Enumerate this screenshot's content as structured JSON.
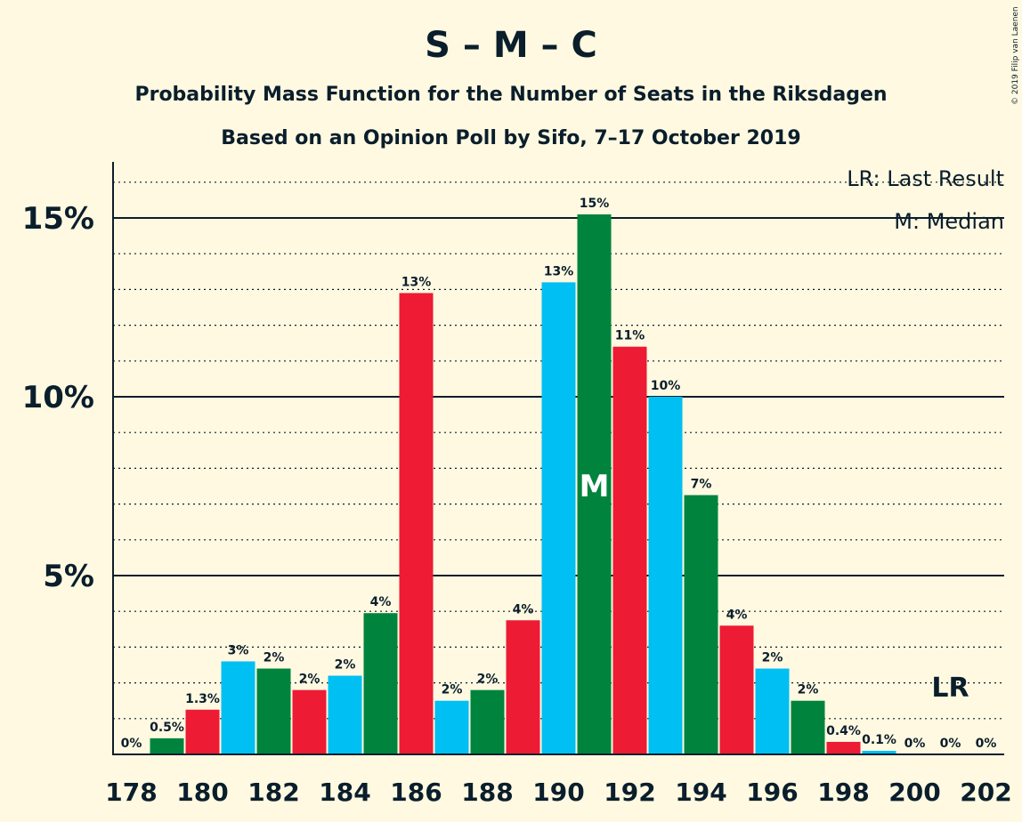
{
  "title": "S – M – C",
  "subtitle1": "Probability Mass Function for the Number of Seats in the Riksdagen",
  "subtitle2": "Based on an Opinion Poll by Sifo, 7–17 October 2019",
  "copyright": "© 2019 Filip van Laenen",
  "legend": {
    "last_result": "LR: Last Result",
    "median": "M: Median"
  },
  "markers": {
    "median_label": "M",
    "median_seat": 191,
    "last_result_label": "LR",
    "last_result_seat": 201
  },
  "colors": {
    "background": "#FFF9E1",
    "blue": "#00BFF3",
    "green": "#00843D",
    "red": "#ED1B34",
    "text": "#0A1E2C"
  },
  "chart_data": {
    "type": "bar",
    "ylim": [
      0,
      16.5
    ],
    "y_major_ticks": [
      5,
      10,
      15
    ],
    "y_tick_labels": [
      "5%",
      "10%",
      "15%"
    ],
    "x_tick_labels": [
      "178",
      "180",
      "182",
      "184",
      "186",
      "188",
      "190",
      "192",
      "194",
      "196",
      "198",
      "200",
      "202"
    ],
    "grid": "dotted lines every 1%, solid lines at 5%, 10%, 15%",
    "categories": [
      178,
      179,
      180,
      181,
      182,
      183,
      184,
      185,
      186,
      187,
      188,
      189,
      190,
      191,
      192,
      193,
      194,
      195,
      196,
      197,
      198,
      199,
      200,
      201,
      202
    ],
    "values": [
      0,
      0.45,
      1.25,
      2.6,
      2.4,
      1.8,
      2.2,
      3.95,
      12.9,
      1.5,
      1.8,
      3.75,
      13.2,
      15.1,
      11.4,
      10.0,
      7.25,
      3.6,
      2.4,
      1.5,
      0.35,
      0.1,
      0,
      0,
      0
    ],
    "labels": [
      "0%",
      "0.5%",
      "1.3%",
      "3%",
      "2%",
      "2%",
      "2%",
      "4%",
      "13%",
      "2%",
      "2%",
      "4%",
      "13%",
      "15%",
      "11%",
      "10%",
      "7%",
      "4%",
      "2%",
      "2%",
      "0.4%",
      "0.1%",
      "0%",
      "0%",
      "0%"
    ],
    "bar_colors": [
      "blue",
      "green",
      "red",
      "blue",
      "green",
      "red",
      "blue",
      "green",
      "red",
      "blue",
      "green",
      "red",
      "blue",
      "green",
      "red",
      "blue",
      "green",
      "red",
      "blue",
      "green",
      "red",
      "blue",
      "green",
      "red",
      "blue"
    ]
  }
}
